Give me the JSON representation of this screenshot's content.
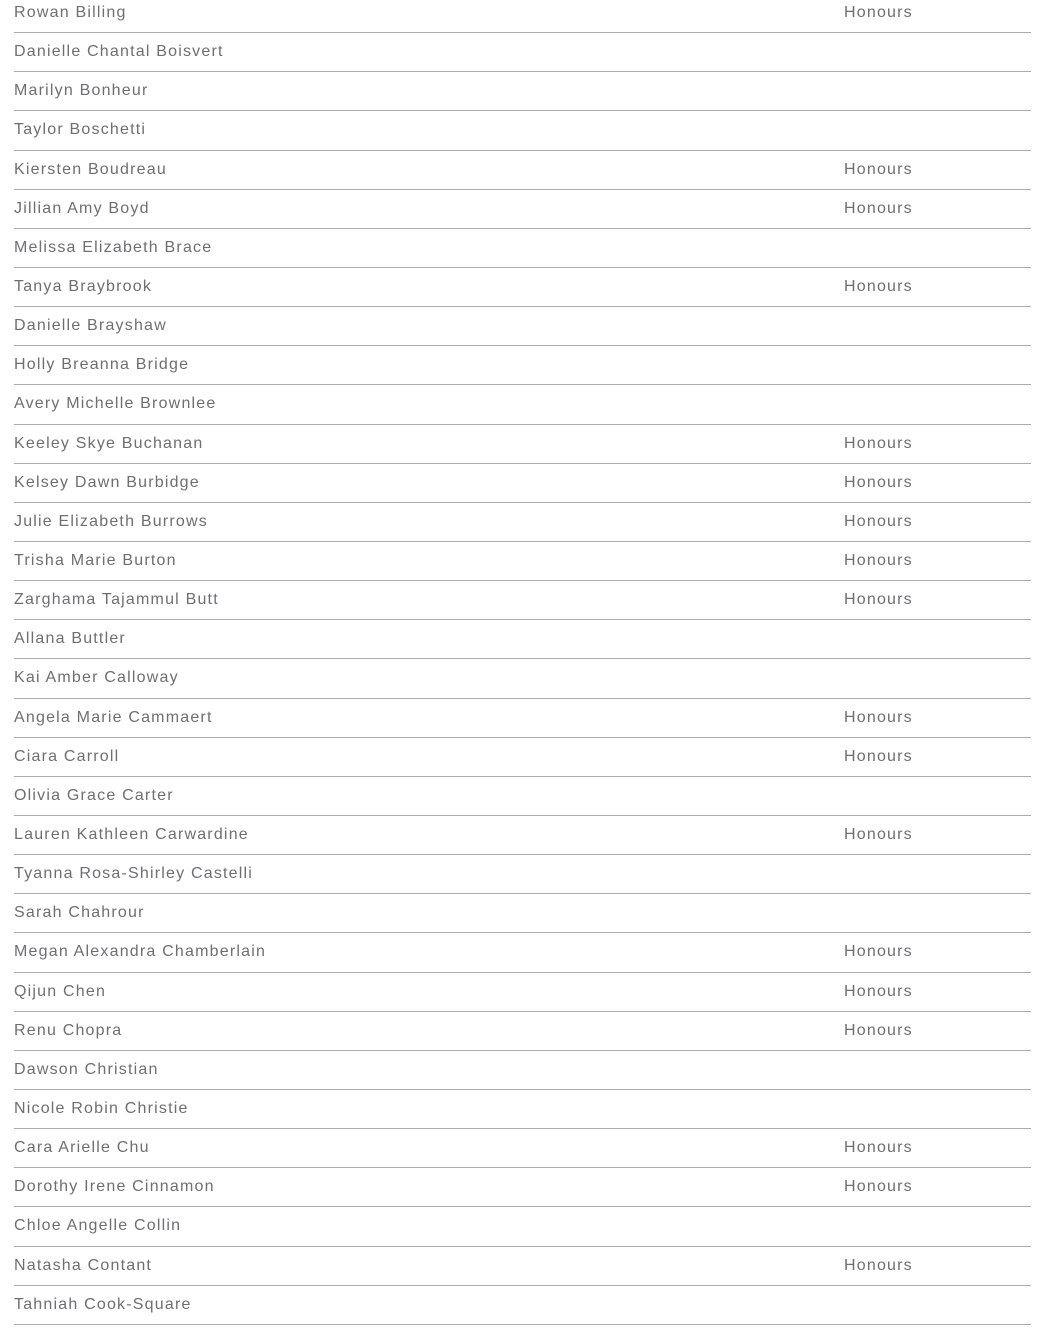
{
  "list": {
    "honours_label": "Honours",
    "rows": [
      {
        "name": "Rowan Billing",
        "honour": "Honours"
      },
      {
        "name": "Danielle Chantal Boisvert",
        "honour": ""
      },
      {
        "name": "Marilyn Bonheur",
        "honour": ""
      },
      {
        "name": "Taylor Boschetti",
        "honour": ""
      },
      {
        "name": "Kiersten Boudreau",
        "honour": "Honours"
      },
      {
        "name": "Jillian Amy Boyd",
        "honour": "Honours"
      },
      {
        "name": "Melissa Elizabeth Brace",
        "honour": ""
      },
      {
        "name": "Tanya Braybrook",
        "honour": "Honours"
      },
      {
        "name": "Danielle Brayshaw",
        "honour": ""
      },
      {
        "name": "Holly Breanna Bridge",
        "honour": ""
      },
      {
        "name": "Avery Michelle Brownlee",
        "honour": ""
      },
      {
        "name": "Keeley Skye Buchanan",
        "honour": "Honours"
      },
      {
        "name": "Kelsey Dawn Burbidge",
        "honour": "Honours"
      },
      {
        "name": "Julie Elizabeth Burrows",
        "honour": "Honours"
      },
      {
        "name": "Trisha Marie Burton",
        "honour": "Honours"
      },
      {
        "name": "Zarghama Tajammul Butt",
        "honour": "Honours"
      },
      {
        "name": "Allana Buttler",
        "honour": ""
      },
      {
        "name": "Kai Amber Calloway",
        "honour": ""
      },
      {
        "name": "Angela Marie Cammaert",
        "honour": "Honours"
      },
      {
        "name": "Ciara Carroll",
        "honour": "Honours"
      },
      {
        "name": "Olivia Grace Carter",
        "honour": ""
      },
      {
        "name": "Lauren Kathleen Carwardine",
        "honour": "Honours"
      },
      {
        "name": "Tyanna Rosa-Shirley Castelli",
        "honour": ""
      },
      {
        "name": "Sarah Chahrour",
        "honour": ""
      },
      {
        "name": "Megan Alexandra Chamberlain",
        "honour": "Honours"
      },
      {
        "name": "Qijun Chen",
        "honour": "Honours"
      },
      {
        "name": "Renu Chopra",
        "honour": "Honours"
      },
      {
        "name": "Dawson Christian",
        "honour": ""
      },
      {
        "name": "Nicole Robin Christie",
        "honour": ""
      },
      {
        "name": "Cara Arielle Chu",
        "honour": "Honours"
      },
      {
        "name": "Dorothy Irene Cinnamon",
        "honour": "Honours"
      },
      {
        "name": "Chloe Angelle Collin",
        "honour": ""
      },
      {
        "name": "Natasha Contant",
        "honour": "Honours"
      },
      {
        "name": "Tahniah Cook-Square",
        "honour": ""
      }
    ]
  },
  "colors": {
    "text": "#6e6f72",
    "divider": "#abacb0",
    "background": "#ffffff"
  }
}
